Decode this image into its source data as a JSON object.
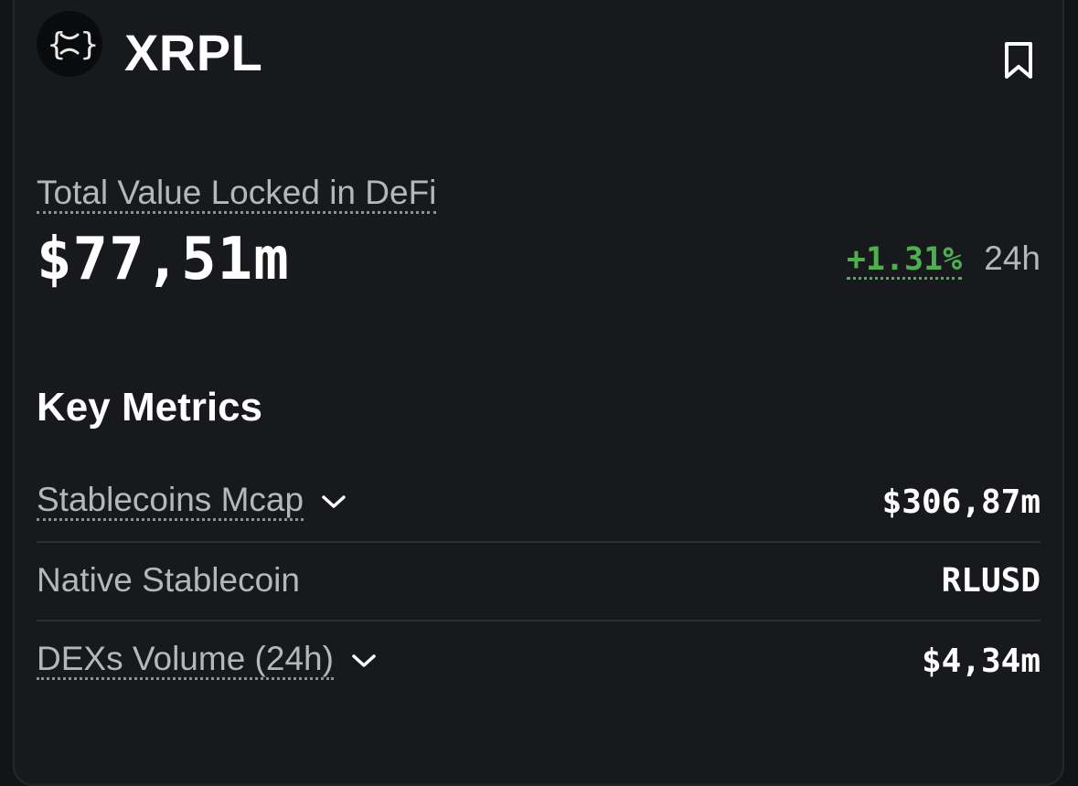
{
  "header": {
    "title": "XRPL",
    "logo_icon": "xrpl-logo-icon",
    "bookmark_icon": "bookmark-icon"
  },
  "tvl": {
    "label": "Total Value Locked in DeFi",
    "value": "$77,51m",
    "change": "+1.31%",
    "change_color": "#4caf50",
    "period": "24h"
  },
  "key_metrics": {
    "title": "Key Metrics",
    "rows": [
      {
        "label": "Stablecoins Mcap",
        "value": "$306,87m",
        "expandable": true
      },
      {
        "label": "Native Stablecoin",
        "value": "RLUSD",
        "expandable": false
      },
      {
        "label": "DEXs Volume (24h)",
        "value": "$4,34m",
        "expandable": true
      }
    ]
  }
}
